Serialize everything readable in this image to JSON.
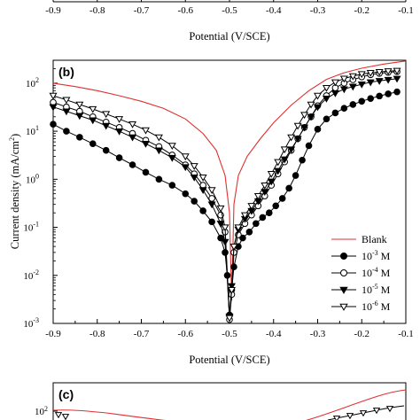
{
  "top_strip": {
    "x_ticks": [
      "-0.9",
      "-0.8",
      "-0.7",
      "-0.6",
      "-0.5",
      "-0.4",
      "-0.3",
      "-0.2",
      "-0.1"
    ],
    "xlabel": "Potential (V/SCE)"
  },
  "bottom_strip": {
    "panel_label": "(c)",
    "y_tick_base": "10",
    "y_tick_exp": "2"
  },
  "chart_data": {
    "type": "line",
    "panel_label": "(b)",
    "xlabel": "Potential (V/SCE)",
    "ylabel": "Current density (mA/cm",
    "ylabel_exp": "2",
    "ylabel_close": ")",
    "xlim": [
      -0.9,
      -0.1
    ],
    "ylim": [
      0.001,
      300
    ],
    "y_scale": "log",
    "x_ticks": [
      -0.9,
      -0.8,
      -0.7,
      -0.6,
      -0.5,
      -0.4,
      -0.3,
      -0.2,
      -0.1
    ],
    "x_tick_labels": [
      "-0.9",
      "-0.8",
      "-0.7",
      "-0.6",
      "-0.5",
      "-0.4",
      "-0.3",
      "-0.2",
      "-0.1"
    ],
    "y_ticks": [
      0.001,
      0.01,
      0.1,
      1,
      10,
      100
    ],
    "y_tick_labels": [
      {
        "base": "10",
        "exp": "-3"
      },
      {
        "base": "10",
        "exp": "-2"
      },
      {
        "base": "10",
        "exp": "-1"
      },
      {
        "base": "10",
        "exp": "0"
      },
      {
        "base": "10",
        "exp": "1"
      },
      {
        "base": "10",
        "exp": "2"
      }
    ],
    "grid": false,
    "legend_position": "bottom-right",
    "series": [
      {
        "name": "Blank",
        "name_base": "Blank",
        "name_exp": "",
        "name_unit": "",
        "color": "#e03030",
        "marker": "none",
        "x": [
          -0.9,
          -0.85,
          -0.8,
          -0.75,
          -0.7,
          -0.65,
          -0.6,
          -0.56,
          -0.53,
          -0.51,
          -0.5,
          -0.495,
          -0.49,
          -0.48,
          -0.46,
          -0.43,
          -0.4,
          -0.36,
          -0.32,
          -0.28,
          -0.24,
          -0.2,
          -0.15,
          -0.1
        ],
        "y": [
          100,
          85,
          70,
          55,
          42,
          30,
          18,
          9,
          4,
          1.2,
          0.2,
          0.003,
          0.3,
          1.2,
          3,
          7,
          15,
          35,
          70,
          120,
          165,
          205,
          250,
          290
        ]
      },
      {
        "name": "10-3 M",
        "name_base": "10",
        "name_exp": "-3",
        "name_unit": " M",
        "color": "#000000",
        "marker": "filled-circle",
        "x": [
          -0.9,
          -0.87,
          -0.84,
          -0.81,
          -0.78,
          -0.75,
          -0.72,
          -0.69,
          -0.66,
          -0.63,
          -0.6,
          -0.58,
          -0.56,
          -0.54,
          -0.52,
          -0.51,
          -0.505,
          -0.5,
          -0.495,
          -0.49,
          -0.48,
          -0.47,
          -0.455,
          -0.44,
          -0.425,
          -0.41,
          -0.395,
          -0.38,
          -0.365,
          -0.35,
          -0.335,
          -0.32,
          -0.3,
          -0.28,
          -0.26,
          -0.24,
          -0.22,
          -0.2,
          -0.18,
          -0.16,
          -0.14,
          -0.12
        ],
        "y": [
          14,
          10,
          7.5,
          5.5,
          4,
          2.8,
          2,
          1.4,
          1,
          0.75,
          0.5,
          0.35,
          0.22,
          0.13,
          0.06,
          0.03,
          0.01,
          0.0015,
          0.005,
          0.015,
          0.04,
          0.06,
          0.08,
          0.12,
          0.16,
          0.2,
          0.28,
          0.4,
          0.65,
          1.2,
          2.5,
          5,
          11,
          18,
          24,
          30,
          36,
          42,
          48,
          54,
          60,
          66
        ]
      },
      {
        "name": "10-4 M",
        "name_base": "10",
        "name_exp": "-4",
        "name_unit": " M",
        "color": "#000000",
        "marker": "open-circle",
        "x": [
          -0.9,
          -0.87,
          -0.84,
          -0.81,
          -0.78,
          -0.75,
          -0.72,
          -0.69,
          -0.66,
          -0.63,
          -0.6,
          -0.58,
          -0.56,
          -0.54,
          -0.52,
          -0.51,
          -0.5,
          -0.495,
          -0.49,
          -0.48,
          -0.465,
          -0.45,
          -0.435,
          -0.42,
          -0.405,
          -0.39,
          -0.375,
          -0.36,
          -0.345,
          -0.33,
          -0.315,
          -0.3,
          -0.28,
          -0.26,
          -0.24,
          -0.22,
          -0.2,
          -0.18,
          -0.16,
          -0.14,
          -0.12
        ],
        "y": [
          40,
          32,
          26,
          20,
          15.5,
          12,
          9,
          6.5,
          4.8,
          3.2,
          2,
          1.3,
          0.75,
          0.4,
          0.18,
          0.08,
          0.0012,
          0.004,
          0.03,
          0.07,
          0.12,
          0.18,
          0.28,
          0.45,
          0.75,
          1.3,
          2.3,
          4,
          7,
          12,
          20,
          34,
          55,
          80,
          100,
          118,
          135,
          150,
          160,
          168,
          174
        ]
      },
      {
        "name": "10-5 M",
        "name_base": "10",
        "name_exp": "-5",
        "name_unit": " M",
        "color": "#000000",
        "marker": "filled-triangle-down",
        "x": [
          -0.9,
          -0.87,
          -0.84,
          -0.81,
          -0.78,
          -0.75,
          -0.72,
          -0.69,
          -0.66,
          -0.63,
          -0.6,
          -0.58,
          -0.56,
          -0.54,
          -0.52,
          -0.51,
          -0.5,
          -0.495,
          -0.49,
          -0.48,
          -0.465,
          -0.45,
          -0.435,
          -0.42,
          -0.405,
          -0.39,
          -0.375,
          -0.36,
          -0.345,
          -0.33,
          -0.315,
          -0.3,
          -0.28,
          -0.26,
          -0.24,
          -0.22,
          -0.2,
          -0.18,
          -0.16,
          -0.14,
          -0.12
        ],
        "y": [
          32,
          26,
          21,
          17,
          13,
          10,
          7.5,
          5.5,
          4,
          2.8,
          1.8,
          1.1,
          0.6,
          0.3,
          0.12,
          0.05,
          0.0014,
          0.006,
          0.04,
          0.09,
          0.15,
          0.22,
          0.35,
          0.55,
          0.9,
          1.5,
          2.6,
          4.2,
          7,
          12,
          20,
          32,
          48,
          62,
          75,
          85,
          95,
          105,
          112,
          118,
          124
        ]
      },
      {
        "name": "10-6 M",
        "name_base": "10",
        "name_exp": "-6",
        "name_unit": " M",
        "color": "#000000",
        "marker": "open-triangle-down",
        "x": [
          -0.9,
          -0.87,
          -0.84,
          -0.81,
          -0.78,
          -0.75,
          -0.72,
          -0.69,
          -0.66,
          -0.63,
          -0.6,
          -0.58,
          -0.56,
          -0.54,
          -0.52,
          -0.51,
          -0.5,
          -0.495,
          -0.49,
          -0.48,
          -0.465,
          -0.45,
          -0.435,
          -0.42,
          -0.405,
          -0.39,
          -0.375,
          -0.36,
          -0.345,
          -0.33,
          -0.315,
          -0.3,
          -0.28,
          -0.26,
          -0.24,
          -0.22,
          -0.2,
          -0.18,
          -0.16,
          -0.14,
          -0.12
        ],
        "y": [
          55,
          45,
          36,
          29,
          23,
          18,
          14,
          10.5,
          7.5,
          5,
          3,
          1.9,
          1.1,
          0.6,
          0.25,
          0.1,
          0.0013,
          0.005,
          0.04,
          0.1,
          0.18,
          0.28,
          0.45,
          0.75,
          1.3,
          2.3,
          4.2,
          7.5,
          13,
          22,
          36,
          55,
          80,
          105,
          125,
          140,
          155,
          165,
          172,
          178,
          182
        ]
      }
    ]
  }
}
